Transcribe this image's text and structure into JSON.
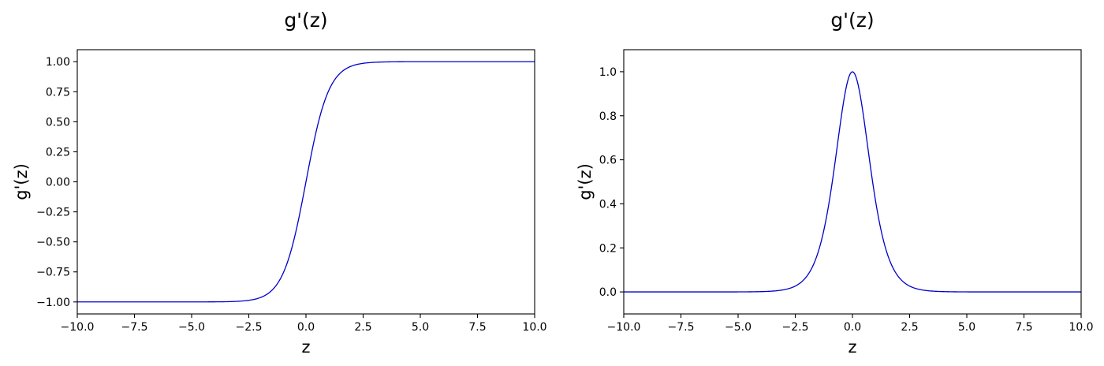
{
  "chart_data": [
    {
      "type": "line",
      "function": "tanh",
      "title": "g'(z)",
      "xlabel": "z",
      "ylabel": "g'(z)",
      "xlim": [
        -10,
        10
      ],
      "ylim": [
        -1.1,
        1.1
      ],
      "grid": false,
      "line_color": "#0000cc",
      "xticks": [
        -10.0,
        -7.5,
        -5.0,
        -2.5,
        0.0,
        2.5,
        5.0,
        7.5,
        10.0
      ],
      "xtick_labels": [
        "−10.0",
        "−7.5",
        "−5.0",
        "−2.5",
        "0.0",
        "2.5",
        "5.0",
        "7.5",
        "10.0"
      ],
      "yticks": [
        -1.0,
        -0.75,
        -0.5,
        -0.25,
        0.0,
        0.25,
        0.5,
        0.75,
        1.0
      ],
      "ytick_labels": [
        "−1.00",
        "−0.75",
        "−0.50",
        "−0.25",
        "0.00",
        "0.25",
        "0.50",
        "0.75",
        "1.00"
      ],
      "x": [
        -10,
        -5,
        -3,
        -2.5,
        -2,
        -1.5,
        -1,
        -0.5,
        0,
        0.5,
        1,
        1.5,
        2,
        2.5,
        3,
        5,
        10
      ],
      "y": [
        -1.0,
        -0.9999,
        -0.995,
        -0.987,
        -0.964,
        -0.905,
        -0.762,
        -0.462,
        0.0,
        0.462,
        0.762,
        0.905,
        0.964,
        0.987,
        0.995,
        0.9999,
        1.0
      ]
    },
    {
      "type": "line",
      "function": "tanh_derivative",
      "title": "g'(z)",
      "xlabel": "z",
      "ylabel": "g'(z)",
      "xlim": [
        -10,
        10
      ],
      "ylim": [
        -0.1,
        1.1
      ],
      "grid": false,
      "line_color": "#0000cc",
      "xticks": [
        -10.0,
        -7.5,
        -5.0,
        -2.5,
        0.0,
        2.5,
        5.0,
        7.5,
        10.0
      ],
      "xtick_labels": [
        "−10.0",
        "−7.5",
        "−5.0",
        "−2.5",
        "0.0",
        "2.5",
        "5.0",
        "7.5",
        "10.0"
      ],
      "yticks": [
        0.0,
        0.2,
        0.4,
        0.6,
        0.8,
        1.0
      ],
      "ytick_labels": [
        "0.0",
        "0.2",
        "0.4",
        "0.6",
        "0.8",
        "1.0"
      ],
      "x": [
        -10,
        -5,
        -3,
        -2.5,
        -2,
        -1.5,
        -1,
        -0.5,
        0,
        0.5,
        1,
        1.5,
        2,
        2.5,
        3,
        5,
        10
      ],
      "y": [
        0.0,
        0.0002,
        0.0099,
        0.0266,
        0.0707,
        0.1807,
        0.42,
        0.7864,
        1.0,
        0.7864,
        0.42,
        0.1807,
        0.0707,
        0.0266,
        0.0099,
        0.0002,
        0.0
      ]
    }
  ]
}
